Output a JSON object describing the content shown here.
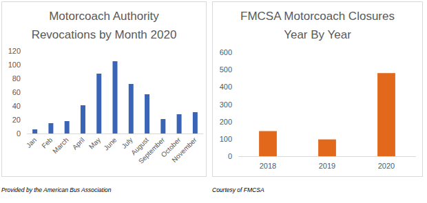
{
  "chart_data": [
    {
      "type": "bar",
      "title": "Motorcoach Authority Revocations by Month 2020",
      "categories": [
        "Jan",
        "Feb",
        "March",
        "April",
        "May",
        "June",
        "July",
        "August",
        "September",
        "October",
        "November"
      ],
      "values": [
        6,
        15,
        18,
        41,
        87,
        105,
        72,
        57,
        21,
        28,
        31
      ],
      "color": "#3a64b5",
      "ylim": [
        0,
        120
      ],
      "yticks": [
        0,
        20,
        40,
        60,
        80,
        100,
        120
      ],
      "grid": false,
      "annotations": [
        "Provided by the American Bus Association"
      ]
    },
    {
      "type": "bar",
      "title": "FMCSA Motorcoach Closures Year By Year",
      "categories": [
        "2018",
        "2019",
        "2020"
      ],
      "values": [
        145,
        97,
        480
      ],
      "color": "#e2691b",
      "ylim": [
        0,
        600
      ],
      "yticks": [
        0,
        100,
        200,
        300,
        400,
        500,
        600
      ],
      "grid": false,
      "annotations": [
        "Courtesy of FMCSA"
      ]
    }
  ]
}
